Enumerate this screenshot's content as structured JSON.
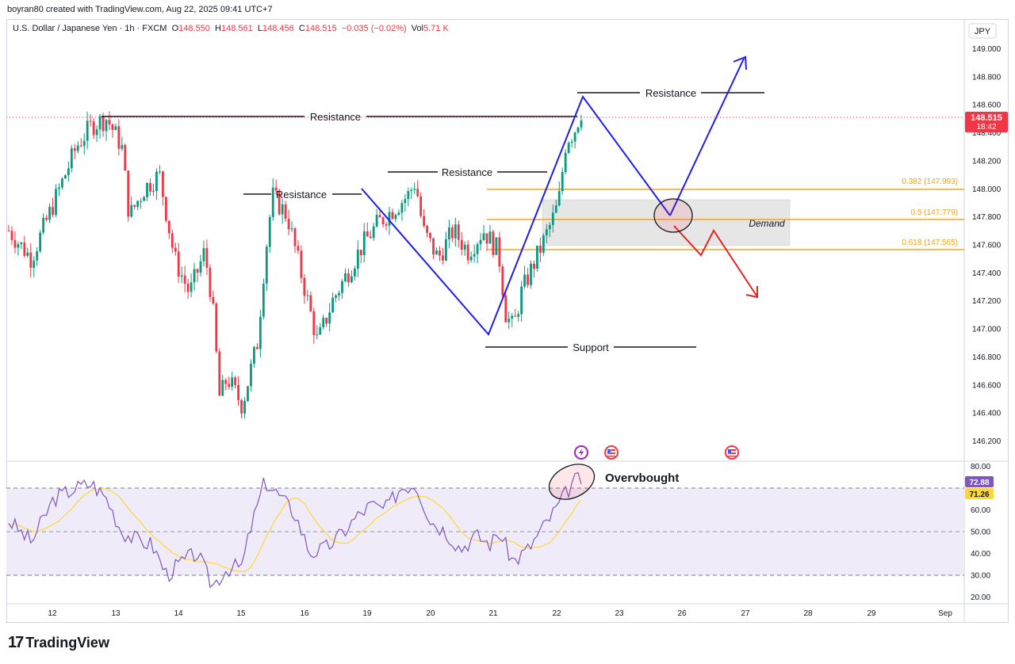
{
  "header": {
    "attribution": "boyran80 created with TradingView.com, Aug 22, 2025 09:41 UTC+7"
  },
  "legend": {
    "symbol": "U.S. Dollar / Japanese Yen · 1h · FXCM",
    "open_label": "O",
    "open": "148.550",
    "high_label": "H",
    "high": "148.561",
    "low_label": "L",
    "low": "148.456",
    "close_label": "C",
    "close": "148.515",
    "change": "−0.035 (−0.02%)",
    "vol_label": "Vol",
    "vol": "5.71 K"
  },
  "currency": "JPY",
  "price_axis": {
    "ticks": [
      "149.000",
      "148.800",
      "148.600",
      "148.400",
      "148.200",
      "148.000",
      "147.800",
      "147.600",
      "147.400",
      "147.200",
      "147.000",
      "146.800",
      "146.600",
      "146.400",
      "146.200"
    ],
    "last_price": "148.515",
    "countdown": "18:42"
  },
  "rsi_axis": {
    "ticks": [
      "80.00",
      "60.00",
      "50.00",
      "40.00",
      "30.00",
      "20.00"
    ],
    "rsi_value": "72.88",
    "rsi_ma_value": "71.26"
  },
  "time_axis": {
    "labels": [
      "12",
      "13",
      "14",
      "15",
      "16",
      "19",
      "20",
      "21",
      "22",
      "23",
      "26",
      "27",
      "28",
      "29",
      "Sep"
    ]
  },
  "annotations": {
    "resistance_1": "Resistance",
    "resistance_2": "Resistance",
    "resistance_3": "Resistance",
    "resistance_4": "Resistance",
    "support": "Support",
    "demand": "Demand",
    "fib_0382": "0.382 (147.993)",
    "fib_05": "0.5 (147.779)",
    "fib_0618": "0.618 (147.565)",
    "overbought": "Overvbought"
  },
  "footer": {
    "brand": "TradingView",
    "logo_mark": "17"
  },
  "colors": {
    "up": "#089981",
    "down": "#f23645",
    "fib": "#f7a21b",
    "wave": "#1e1eee",
    "bearish_path": "#e8231f",
    "rsi": "#7e57c2",
    "rsi_ma": "#fdd835",
    "rsi_band": "#f0ebf9"
  },
  "chart_data": {
    "type": "candlestick",
    "title": "U.S. Dollar / Japanese Yen · 1h · FXCM",
    "ylabel": "JPY",
    "ylim": [
      146.15,
      149.1
    ],
    "x_labels": [
      "12",
      "13",
      "14",
      "15",
      "16",
      "19",
      "20",
      "21",
      "22",
      "23",
      "26",
      "27",
      "28",
      "29",
      "Sep"
    ],
    "price_anchor_path": [
      [
        0,
        147.7
      ],
      [
        3,
        147.5
      ],
      [
        6,
        147.9
      ],
      [
        9,
        148.3
      ],
      [
        11,
        148.45
      ],
      [
        13,
        148.5
      ],
      [
        15,
        148.3
      ],
      [
        16,
        147.8
      ],
      [
        18,
        148.0
      ],
      [
        20,
        148.1
      ],
      [
        22,
        147.5
      ],
      [
        24,
        147.25
      ],
      [
        26,
        147.55
      ],
      [
        27,
        147.2
      ],
      [
        28,
        146.5
      ],
      [
        29,
        146.65
      ],
      [
        31,
        146.45
      ],
      [
        33,
        146.9
      ],
      [
        34,
        147.5
      ],
      [
        35,
        147.95
      ],
      [
        37,
        147.8
      ],
      [
        39,
        147.35
      ],
      [
        41,
        146.9
      ],
      [
        43,
        147.2
      ],
      [
        45,
        147.4
      ],
      [
        47,
        147.6
      ],
      [
        49,
        147.75
      ],
      [
        51,
        147.85
      ],
      [
        53,
        147.95
      ],
      [
        54,
        148.05
      ],
      [
        55,
        147.7
      ],
      [
        57,
        147.5
      ],
      [
        59,
        147.7
      ],
      [
        61,
        147.55
      ],
      [
        63,
        147.7
      ],
      [
        65,
        147.55
      ],
      [
        66,
        147.1
      ],
      [
        67,
        147.0
      ],
      [
        68,
        147.25
      ],
      [
        70,
        147.5
      ],
      [
        72,
        147.75
      ],
      [
        73,
        147.9
      ],
      [
        74,
        148.35
      ],
      [
        75,
        148.4
      ],
      [
        76,
        148.55
      ]
    ],
    "levels": {
      "resistance_major": 148.52,
      "resistance_top": 148.68,
      "resistance_mid": 148.13,
      "resistance_low": 147.96,
      "support": 146.88,
      "fib_0382": 147.993,
      "fib_05": 147.779,
      "fib_0618": 147.565,
      "demand_zone": [
        147.6,
        147.93
      ]
    },
    "rsi": {
      "ylim": [
        17,
        82
      ],
      "overbought": 70,
      "mid": 50,
      "oversold": 30,
      "anchor_path": [
        [
          0,
          55
        ],
        [
          3,
          45
        ],
        [
          6,
          65
        ],
        [
          9,
          70
        ],
        [
          11,
          72
        ],
        [
          13,
          65
        ],
        [
          15,
          50
        ],
        [
          17,
          46
        ],
        [
          19,
          44
        ],
        [
          21,
          30
        ],
        [
          23,
          36
        ],
        [
          25,
          40
        ],
        [
          27,
          25
        ],
        [
          29,
          33
        ],
        [
          31,
          34
        ],
        [
          32,
          50
        ],
        [
          34,
          73
        ],
        [
          36,
          66
        ],
        [
          38,
          58
        ],
        [
          40,
          40
        ],
        [
          42,
          42
        ],
        [
          44,
          48
        ],
        [
          46,
          56
        ],
        [
          48,
          62
        ],
        [
          50,
          60
        ],
        [
          52,
          70
        ],
        [
          54,
          72
        ],
        [
          56,
          55
        ],
        [
          58,
          50
        ],
        [
          60,
          42
        ],
        [
          62,
          48
        ],
        [
          64,
          44
        ],
        [
          65,
          50
        ],
        [
          67,
          36
        ],
        [
          69,
          42
        ],
        [
          71,
          52
        ],
        [
          73,
          62
        ],
        [
          75,
          73
        ],
        [
          76,
          74
        ]
      ],
      "value": 72.88,
      "ma_value": 71.26
    }
  }
}
